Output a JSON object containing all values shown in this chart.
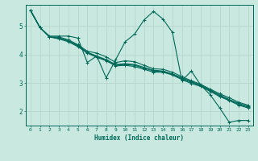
{
  "xlabel": "Humidex (Indice chaleur)",
  "bg_color": "#c8e8e0",
  "grid_color": "#b8d8d0",
  "line_color": "#006858",
  "xlim": [
    -0.5,
    23.5
  ],
  "ylim": [
    1.5,
    5.75
  ],
  "yticks": [
    2,
    3,
    4,
    5
  ],
  "xticks": [
    0,
    1,
    2,
    3,
    4,
    5,
    6,
    7,
    8,
    9,
    10,
    11,
    12,
    13,
    14,
    15,
    16,
    17,
    18,
    19,
    20,
    21,
    22,
    23
  ],
  "lines": [
    [
      5.55,
      4.95,
      4.65,
      4.65,
      4.65,
      4.58,
      3.72,
      3.95,
      3.18,
      3.82,
      4.45,
      4.72,
      5.22,
      5.52,
      5.25,
      4.78,
      3.08,
      3.42,
      2.92,
      2.58,
      2.12,
      1.62,
      1.68,
      1.68
    ],
    [
      5.55,
      4.95,
      4.62,
      4.62,
      4.52,
      4.35,
      4.12,
      4.05,
      3.92,
      3.72,
      3.78,
      3.75,
      3.62,
      3.5,
      3.48,
      3.38,
      3.22,
      3.08,
      2.95,
      2.78,
      2.62,
      2.48,
      2.32,
      2.22
    ],
    [
      5.55,
      4.95,
      4.62,
      4.58,
      4.48,
      4.32,
      4.08,
      3.95,
      3.82,
      3.65,
      3.68,
      3.65,
      3.55,
      3.45,
      3.42,
      3.32,
      3.18,
      3.05,
      2.92,
      2.75,
      2.58,
      2.42,
      2.28,
      2.18
    ],
    [
      5.55,
      4.95,
      4.62,
      4.58,
      4.48,
      4.3,
      4.07,
      3.93,
      3.8,
      3.63,
      3.65,
      3.62,
      3.52,
      3.42,
      3.4,
      3.3,
      3.15,
      3.02,
      2.9,
      2.73,
      2.55,
      2.4,
      2.25,
      2.15
    ],
    [
      5.55,
      4.95,
      4.62,
      4.55,
      4.45,
      4.28,
      4.05,
      3.9,
      3.78,
      3.6,
      3.62,
      3.58,
      3.48,
      3.38,
      3.38,
      3.28,
      3.12,
      2.98,
      2.88,
      2.7,
      2.52,
      2.38,
      2.22,
      2.12
    ]
  ]
}
